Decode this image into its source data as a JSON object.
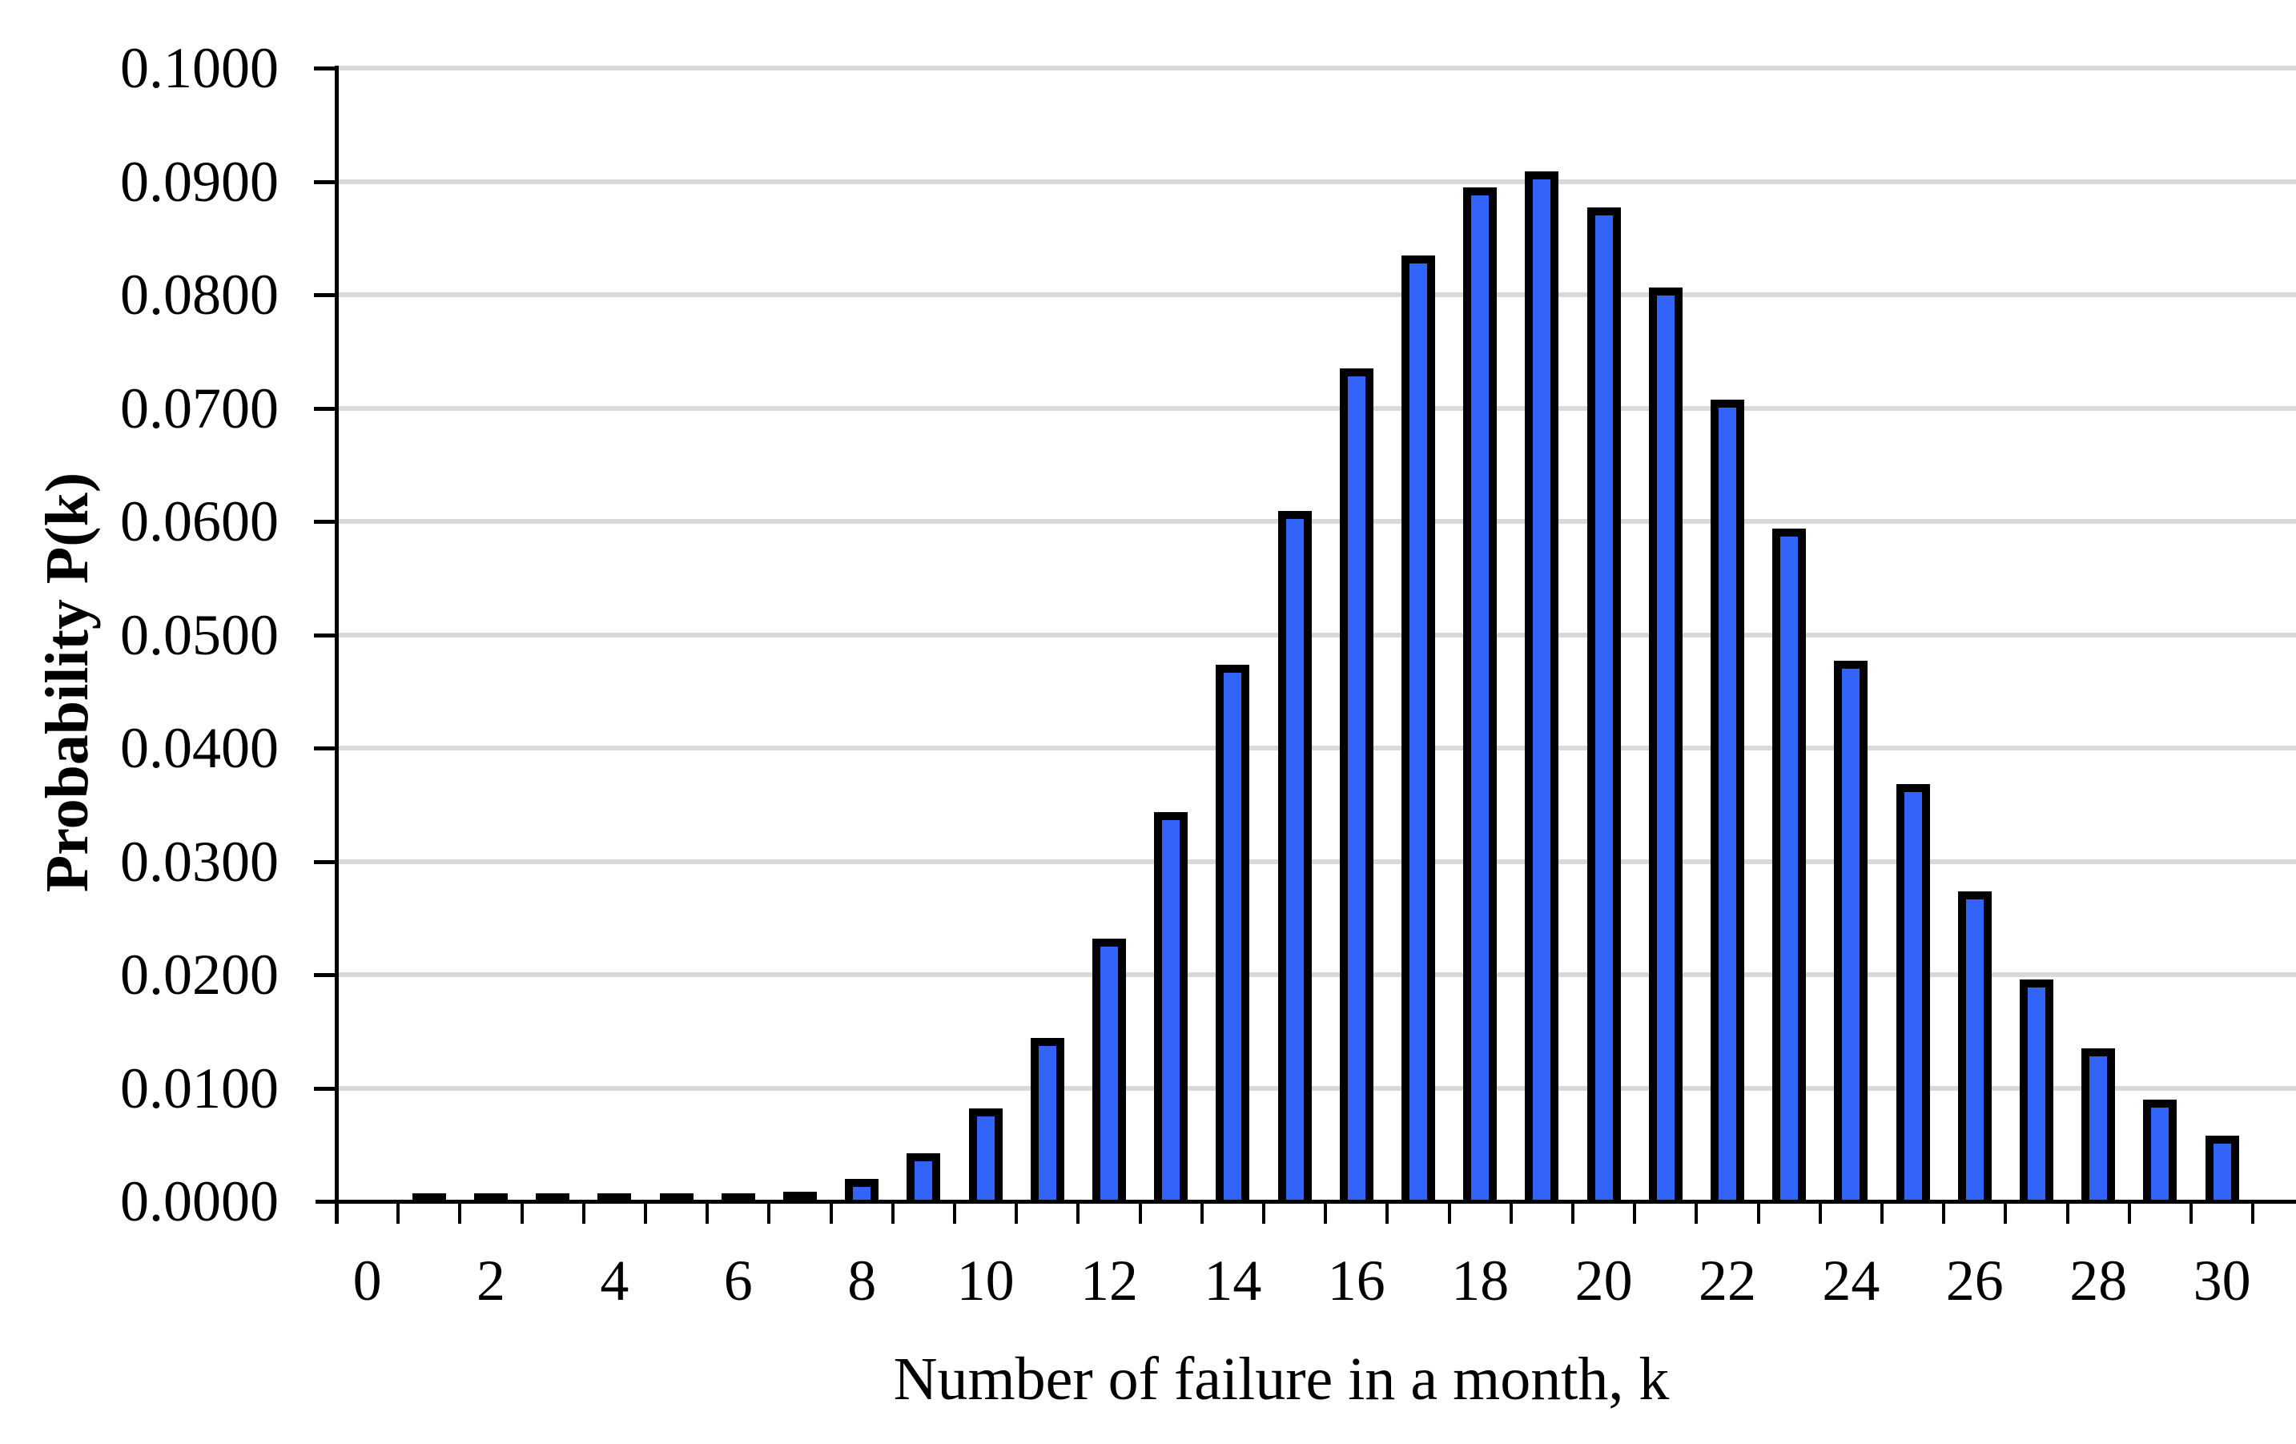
{
  "chart_data": {
    "type": "bar",
    "title": "",
    "xlabel": "Number of failure in a month, k",
    "ylabel": "Probability P(k)",
    "x": [
      0,
      1,
      2,
      3,
      4,
      5,
      6,
      7,
      8,
      9,
      10,
      11,
      12,
      13,
      14,
      15,
      16,
      17,
      18,
      19,
      20,
      21,
      22,
      23,
      24,
      25,
      26,
      27,
      28,
      29,
      30
    ],
    "values": [
      0,
      1e-07,
      8e-07,
      5e-06,
      2.4e-05,
      9.26e-05,
      0.0002979,
      0.0008215,
      0.0019818,
      0.00425,
      0.0082025,
      0.0143918,
      0.0231468,
      0.0343642,
      0.0473734,
      0.0609538,
      0.0735255,
      0.083473,
      0.0895022,
      0.0909154,
      0.0877334,
      0.0806372,
      0.0707409,
      0.0593609,
      0.047736,
      0.0368522,
      0.0273577,
      0.019556,
      0.0134797,
      0.0089711,
      0.0057714
    ],
    "xtick_labels": [
      "0",
      "2",
      "4",
      "6",
      "8",
      "10",
      "12",
      "14",
      "16",
      "18",
      "20",
      "22",
      "24",
      "26",
      "28",
      "30"
    ],
    "xtick_step": 2,
    "ytick_labels": [
      "0.0000",
      "0.0100",
      "0.0200",
      "0.0300",
      "0.0400",
      "0.0500",
      "0.0600",
      "0.0700",
      "0.0800",
      "0.0900",
      "0.1000"
    ],
    "ylim": [
      0,
      0.1
    ],
    "ytick_interval": 0.01,
    "grid": "horizontal",
    "legend": "none",
    "bar_fill_color": "#3364FA",
    "bar_border_color": "#000000",
    "gridline_color": "#D9D9D9",
    "axis_color": "#000000"
  }
}
